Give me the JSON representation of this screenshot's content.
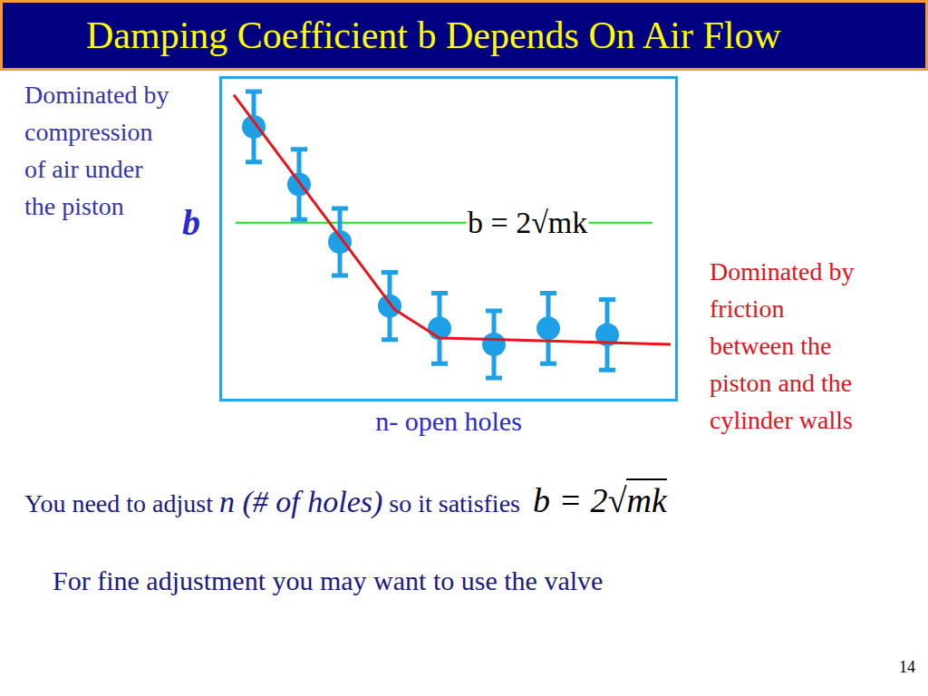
{
  "slide": {
    "title": "Damping Coefficient b Depends On Air Flow",
    "left_note": [
      "Dominated by",
      "compression",
      "of air under",
      "the piston"
    ],
    "right_note": [
      "Dominated by",
      "friction",
      "between the",
      "piston and the",
      "cylinder walls"
    ],
    "instruction": {
      "before": "You need to adjust",
      "emphasis": "n (# of holes)",
      "after": "so it satisfies",
      "formula": "b = 2√mk"
    },
    "tip": "For fine adjustment you may want to use the valve",
    "page": "14"
  },
  "chart_data": {
    "type": "scatter",
    "x_label": "n- open holes",
    "y_label": "b",
    "xlim": [
      0,
      10
    ],
    "ylim": [
      0,
      10
    ],
    "tick_labels": false,
    "grid": false,
    "series": [
      {
        "type": "scatter",
        "marker": "circle",
        "color": "#1ea0e6",
        "x": [
          0.7,
          1.7,
          2.6,
          3.7,
          4.8,
          6.0,
          7.2,
          8.5
        ],
        "values": [
          8.5,
          6.7,
          4.9,
          2.9,
          2.2,
          1.7,
          2.2,
          2.0
        ],
        "error": [
          1.1,
          1.1,
          1.05,
          1.05,
          1.1,
          1.05,
          1.1,
          1.1
        ]
      },
      {
        "type": "line",
        "line_style": "solid",
        "color": "#e8141c",
        "x": [
          0.26,
          3.8,
          4.8,
          9.9
        ],
        "values": [
          9.5,
          2.8,
          1.9,
          1.7
        ]
      }
    ],
    "reference_line": {
      "value": 5.5,
      "x": [
        0.3,
        9.5
      ],
      "label": "b = 2√mk",
      "color": "#22dd22"
    }
  }
}
